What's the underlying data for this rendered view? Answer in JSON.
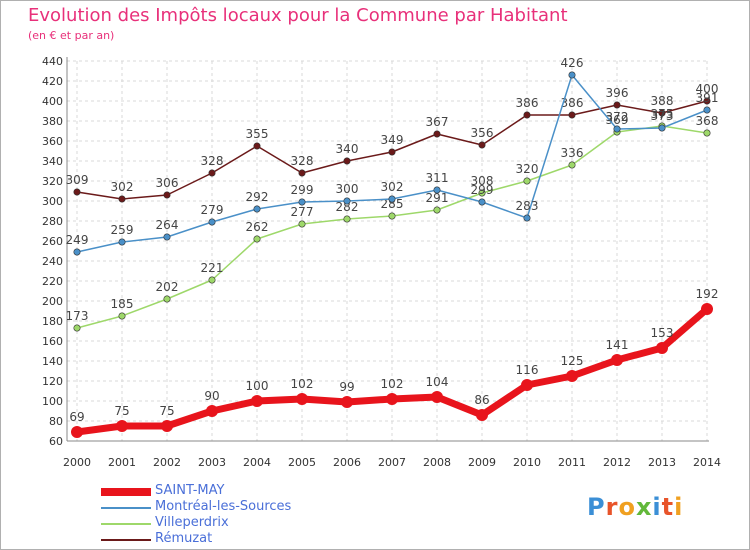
{
  "title": "Evolution des Impôts locaux pour la Commune par Habitant",
  "subtitle": "(en € et par an)",
  "brand": {
    "text": "Proxiti",
    "letter_colors": [
      "#3b8fd6",
      "#e8542a",
      "#f0a020",
      "#62b83a",
      "#3b8fd6",
      "#e8542a",
      "#f0a020"
    ]
  },
  "chart_data": {
    "type": "line",
    "x": [
      "2000",
      "2001",
      "2002",
      "2003",
      "2004",
      "2005",
      "2006",
      "2007",
      "2008",
      "2009",
      "2010",
      "2011",
      "2012",
      "2013",
      "2014"
    ],
    "ylim": [
      60,
      440
    ],
    "yticks": [
      60,
      80,
      100,
      120,
      140,
      160,
      180,
      200,
      220,
      240,
      260,
      280,
      300,
      320,
      340,
      360,
      380,
      400,
      420,
      440
    ],
    "grid": true,
    "legend_position": "bottom-left",
    "series": [
      {
        "name": "SAINT-MAY",
        "color": "#e8141c",
        "emphasis": true,
        "values": [
          69,
          75,
          75,
          90,
          100,
          102,
          99,
          102,
          104,
          86,
          116,
          125,
          141,
          153,
          192
        ]
      },
      {
        "name": "Montréal-les-Sources",
        "color": "#4a90c8",
        "values": [
          249,
          259,
          264,
          279,
          292,
          299,
          300,
          302,
          311,
          299,
          283,
          426,
          372,
          373,
          391
        ]
      },
      {
        "name": "Villeperdrix",
        "color": "#9ed86a",
        "values": [
          173,
          185,
          202,
          221,
          262,
          277,
          282,
          285,
          291,
          308,
          320,
          336,
          369,
          375,
          368
        ]
      },
      {
        "name": "Rémuzat",
        "color": "#6b1a1a",
        "values": [
          309,
          302,
          306,
          328,
          355,
          328,
          340,
          349,
          367,
          356,
          386,
          386,
          396,
          388,
          400
        ]
      }
    ]
  }
}
